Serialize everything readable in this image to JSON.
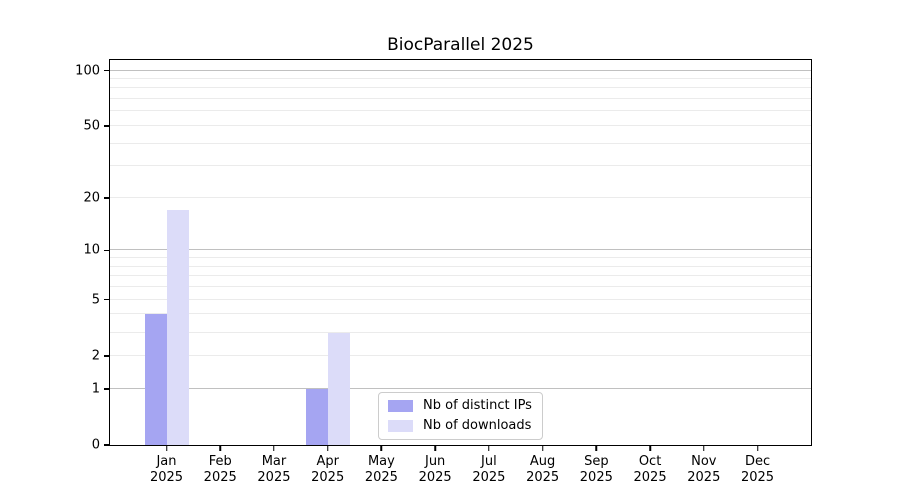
{
  "title": "BiocParallel 2025",
  "chart_data": {
    "type": "bar",
    "title": "BiocParallel 2025",
    "categories": [
      "Jan 2025",
      "Feb 2025",
      "Mar 2025",
      "Apr 2025",
      "May 2025",
      "Jun 2025",
      "Jul 2025",
      "Aug 2025",
      "Sep 2025",
      "Oct 2025",
      "Nov 2025",
      "Dec 2025"
    ],
    "series": [
      {
        "name": "Nb of distinct IPs",
        "color": "#a5a5f2",
        "values": [
          4,
          0,
          0,
          1,
          0,
          0,
          0,
          0,
          0,
          0,
          0,
          0
        ]
      },
      {
        "name": "Nb of downloads",
        "color": "#dcdcf9",
        "values": [
          17,
          0,
          0,
          3,
          0,
          0,
          0,
          0,
          0,
          0,
          0,
          0
        ]
      }
    ],
    "xlabel": "",
    "ylabel": "",
    "yscale": "log1p",
    "ylim": [
      0,
      114
    ],
    "yticks": [
      0,
      1,
      2,
      5,
      10,
      20,
      50,
      100
    ],
    "grid_major": [
      1,
      10,
      100
    ],
    "grid_minor": [
      2,
      3,
      4,
      5,
      6,
      7,
      8,
      9,
      20,
      30,
      40,
      50,
      60,
      70,
      80,
      90
    ],
    "legend_position": "lower center",
    "colors": {
      "grid_major": "#c0c0c0",
      "grid_minor": "#ebebeb",
      "axis": "#000000",
      "background": "#ffffff"
    }
  }
}
